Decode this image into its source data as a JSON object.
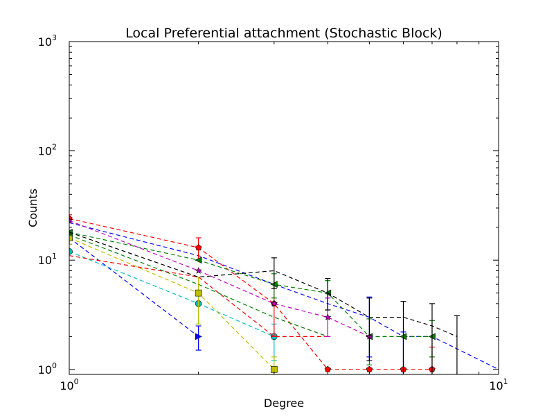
{
  "chart_data": {
    "type": "line",
    "title": "Local Preferential attachment (Stochastic Block)",
    "xlabel": "Degree",
    "ylabel": "Counts",
    "x_scale": "log",
    "y_scale": "log",
    "xlim": [
      1,
      10
    ],
    "ylim": [
      0.9,
      1000
    ],
    "x_ticks": [
      {
        "value": 1,
        "base": "10",
        "exp": "0"
      },
      {
        "value": 10,
        "base": "10",
        "exp": "1"
      }
    ],
    "y_ticks": [
      {
        "value": 1,
        "base": "10",
        "exp": "0"
      },
      {
        "value": 10,
        "base": "10",
        "exp": "1"
      },
      {
        "value": 100,
        "base": "10",
        "exp": "2"
      },
      {
        "value": 1000,
        "base": "10",
        "exp": "3"
      }
    ],
    "grid": false,
    "legend": "none",
    "series": [
      {
        "color": "#0000ff",
        "marker": "triangle-right",
        "points": [
          [
            1,
            16
          ],
          [
            2,
            2
          ]
        ],
        "err": [
          [
            1,
            14,
            18
          ],
          [
            2,
            1.5,
            2.5
          ]
        ]
      },
      {
        "color": "#0000ff",
        "marker": "none",
        "points": [
          [
            1,
            22
          ],
          [
            2,
            11
          ],
          [
            3,
            6
          ],
          [
            4,
            4
          ],
          [
            5,
            3
          ],
          [
            6,
            2
          ],
          [
            7,
            2
          ],
          [
            10,
            1
          ]
        ],
        "err": [
          [
            5,
            1.3,
            4.6
          ],
          [
            6,
            0.5,
            2.2
          ]
        ]
      },
      {
        "color": "#00bfbf",
        "marker": "circle",
        "points": [
          [
            1,
            12
          ],
          [
            2,
            4
          ],
          [
            3,
            2
          ]
        ],
        "err": [
          [
            2,
            2.6,
            5.2
          ],
          [
            3,
            1.2,
            2.6
          ]
        ]
      },
      {
        "color": "#bfbf00",
        "marker": "square",
        "points": [
          [
            1,
            16
          ],
          [
            2,
            5
          ],
          [
            3,
            1
          ]
        ],
        "err": [
          [
            1,
            14,
            18
          ],
          [
            2,
            2.6,
            7
          ],
          [
            3,
            0.9,
            1.3
          ]
        ]
      },
      {
        "color": "#ff0000",
        "marker": "pentagon",
        "points": [
          [
            1,
            24
          ],
          [
            2,
            13
          ],
          [
            3,
            4
          ],
          [
            4,
            1
          ],
          [
            5,
            1
          ],
          [
            6,
            1
          ],
          [
            7,
            1
          ]
        ],
        "err": [
          [
            1,
            22,
            26
          ],
          [
            2,
            10,
            16
          ],
          [
            3,
            2,
            6
          ],
          [
            7,
            0.8,
            1.6
          ]
        ]
      },
      {
        "color": "#ff0000",
        "marker": "none",
        "points": [
          [
            1,
            11
          ],
          [
            2,
            7
          ],
          [
            3,
            2
          ],
          [
            4,
            2
          ]
        ],
        "err": []
      },
      {
        "color": "#008000",
        "marker": "triangle-left",
        "points": [
          [
            1,
            18
          ],
          [
            2,
            10
          ],
          [
            3,
            6
          ],
          [
            4,
            5
          ],
          [
            5,
            2
          ],
          [
            6,
            2
          ],
          [
            7,
            2
          ]
        ],
        "err": [
          [
            3,
            4.5,
            7.5
          ],
          [
            4,
            3.5,
            6.5
          ],
          [
            5,
            1.1,
            2.9
          ],
          [
            7,
            1.3,
            2.8
          ]
        ]
      },
      {
        "color": "#008000",
        "marker": "none",
        "points": [
          [
            1,
            17
          ],
          [
            2,
            6
          ],
          [
            3,
            3
          ],
          [
            4,
            2
          ]
        ],
        "err": []
      },
      {
        "color": "#bf00bf",
        "marker": "star",
        "points": [
          [
            1,
            23
          ],
          [
            2,
            8
          ],
          [
            3,
            4
          ],
          [
            4,
            3
          ],
          [
            5,
            2
          ]
        ],
        "err": [
          [
            4,
            2,
            4.5
          ]
        ]
      },
      {
        "color": "#000000",
        "marker": "none",
        "points": [
          [
            1,
            18
          ],
          [
            2,
            7
          ],
          [
            3,
            8
          ],
          [
            4,
            5
          ],
          [
            5,
            3
          ],
          [
            6,
            3
          ],
          [
            7,
            2.5
          ],
          [
            8,
            2
          ]
        ],
        "err": [
          [
            3,
            5.5,
            10.5
          ],
          [
            4,
            3.5,
            6.8
          ],
          [
            5,
            1.2,
            4.5
          ],
          [
            6,
            0.8,
            4.2
          ],
          [
            7,
            0.8,
            4
          ],
          [
            8,
            0.8,
            3.1
          ]
        ]
      }
    ]
  }
}
